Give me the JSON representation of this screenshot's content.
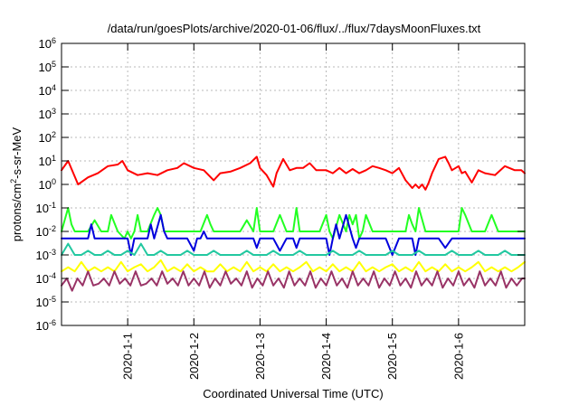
{
  "chart_data": {
    "type": "line",
    "title": "/data/run/goesPlots/archive/2020-01-06/flux/../flux/7daysMoonFluxes.txt",
    "xlabel": "Coordinated Universal Time (UTC)",
    "ylabel_parts": {
      "before": "protons/cm",
      "sup": "2",
      "after": "-s-sr-MeV"
    },
    "x_range": [
      0,
      7
    ],
    "x_ticks": [
      {
        "x": 1,
        "label": "2020-1-1"
      },
      {
        "x": 2,
        "label": "2020-1-2"
      },
      {
        "x": 3,
        "label": "2020-1-3"
      },
      {
        "x": 4,
        "label": "2020-1-4"
      },
      {
        "x": 5,
        "label": "2020-1-5"
      },
      {
        "x": 6,
        "label": "2020-1-6"
      }
    ],
    "y_scale": "log",
    "y_range": [
      1e-06,
      1000000.0
    ],
    "y_ticks": [
      {
        "exp": -6,
        "base": "10",
        "sup": "-6"
      },
      {
        "exp": -5,
        "base": "10",
        "sup": "-5"
      },
      {
        "exp": -4,
        "base": "10",
        "sup": "-4"
      },
      {
        "exp": -3,
        "base": "10",
        "sup": "-3"
      },
      {
        "exp": -2,
        "base": "10",
        "sup": "-2"
      },
      {
        "exp": -1,
        "base": "10",
        "sup": "-1"
      },
      {
        "exp": 0,
        "base": "10",
        "sup": "0"
      },
      {
        "exp": 1,
        "base": "10",
        "sup": "1"
      },
      {
        "exp": 2,
        "base": "10",
        "sup": "2"
      },
      {
        "exp": 3,
        "base": "10",
        "sup": "3"
      },
      {
        "exp": 4,
        "base": "10",
        "sup": "4"
      },
      {
        "exp": 5,
        "base": "10",
        "sup": "5"
      },
      {
        "exp": 6,
        "base": "10",
        "sup": "6"
      }
    ],
    "grid": true,
    "series": [
      {
        "color": "#ff0000",
        "x": [
          0,
          0.1,
          0.25,
          0.4,
          0.55,
          0.7,
          0.85,
          0.92,
          1.0,
          1.15,
          1.3,
          1.45,
          1.6,
          1.75,
          1.85,
          2.0,
          2.15,
          2.3,
          2.4,
          2.55,
          2.7,
          2.85,
          2.95,
          3.0,
          3.1,
          3.2,
          3.25,
          3.35,
          3.45,
          3.55,
          3.65,
          3.75,
          3.85,
          4.0,
          4.1,
          4.2,
          4.3,
          4.4,
          4.5,
          4.6,
          4.7,
          4.8,
          4.9,
          5.0,
          5.1,
          5.2,
          5.3,
          5.35,
          5.4,
          5.45,
          5.5,
          5.55,
          5.6,
          5.7,
          5.8,
          5.85,
          5.9,
          6.0,
          6.05,
          6.1,
          6.2,
          6.3,
          6.4,
          6.55,
          6.7,
          6.85,
          6.95,
          7.0
        ],
        "values": [
          4,
          10,
          1.0,
          2,
          3,
          6,
          7,
          10,
          4,
          2.5,
          3,
          2.5,
          4,
          5,
          8,
          5,
          4,
          1.5,
          3,
          3.5,
          5,
          8,
          15,
          5,
          2.5,
          0.8,
          3,
          12,
          4,
          5,
          5,
          8,
          4,
          4,
          3,
          5,
          3,
          4.5,
          3,
          4,
          6,
          5,
          4,
          3,
          5,
          1.5,
          0.7,
          1.0,
          0.7,
          1.0,
          0.6,
          1.2,
          3,
          12,
          15,
          8,
          4,
          6,
          3,
          3.5,
          1.2,
          4,
          3,
          2.5,
          6,
          4,
          4,
          3
        ]
      },
      {
        "color": "#22ff22",
        "x": [
          0,
          0.1,
          0.15,
          0.2,
          0.3,
          0.4,
          0.5,
          0.6,
          0.7,
          0.75,
          0.85,
          0.95,
          1.0,
          1.05,
          1.1,
          1.15,
          1.2,
          1.3,
          1.4,
          1.45,
          1.5,
          1.55,
          1.6,
          1.7,
          1.8,
          1.9,
          2.0,
          2.1,
          2.2,
          2.25,
          2.3,
          2.4,
          2.5,
          2.6,
          2.7,
          2.8,
          2.9,
          2.95,
          3.0,
          3.05,
          3.1,
          3.2,
          3.3,
          3.4,
          3.5,
          3.55,
          3.6,
          3.7,
          3.8,
          3.9,
          4.0,
          4.05,
          4.1,
          4.2,
          4.3,
          4.35,
          4.4,
          4.45,
          4.5,
          4.55,
          4.6,
          4.7,
          4.8,
          4.9,
          5.0,
          5.1,
          5.2,
          5.25,
          5.3,
          5.35,
          5.4,
          5.5,
          5.6,
          5.7,
          5.8,
          5.9,
          6.0,
          6.05,
          6.1,
          6.2,
          6.3,
          6.4,
          6.5,
          6.6,
          6.7,
          6.8,
          6.9,
          7.0
        ],
        "values": [
          0.01,
          0.1,
          0.02,
          0.01,
          0.01,
          0.01,
          0.03,
          0.01,
          0.01,
          0.05,
          0.01,
          0.005,
          0.01,
          0.005,
          0.01,
          0.05,
          0.01,
          0.01,
          0.05,
          0.1,
          0.05,
          0.01,
          0.01,
          0.01,
          0.01,
          0.01,
          0.01,
          0.01,
          0.05,
          0.02,
          0.01,
          0.01,
          0.01,
          0.01,
          0.01,
          0.03,
          0.01,
          0.1,
          0.01,
          0.01,
          0.01,
          0.01,
          0.05,
          0.01,
          0.01,
          0.1,
          0.01,
          0.01,
          0.01,
          0.01,
          0.05,
          0.01,
          0.005,
          0.05,
          0.01,
          0.05,
          0.02,
          0.05,
          0.005,
          0.01,
          0.05,
          0.01,
          0.01,
          0.01,
          0.01,
          0.01,
          0.01,
          0.05,
          0.02,
          0.01,
          0.1,
          0.01,
          0.01,
          0.01,
          0.01,
          0.01,
          0.01,
          0.1,
          0.05,
          0.01,
          0.01,
          0.01,
          0.05,
          0.01,
          0.01,
          0.01,
          0.01,
          0.01
        ]
      },
      {
        "color": "#0000dd",
        "x": [
          0,
          0.1,
          0.2,
          0.3,
          0.4,
          0.45,
          0.5,
          0.6,
          0.7,
          0.8,
          0.9,
          1.0,
          1.05,
          1.1,
          1.15,
          1.2,
          1.3,
          1.35,
          1.4,
          1.5,
          1.55,
          1.6,
          1.7,
          1.8,
          1.9,
          2.0,
          2.05,
          2.1,
          2.15,
          2.2,
          2.3,
          2.4,
          2.5,
          2.6,
          2.7,
          2.8,
          2.9,
          2.95,
          3.0,
          3.05,
          3.1,
          3.2,
          3.3,
          3.4,
          3.5,
          3.55,
          3.6,
          3.7,
          3.8,
          3.9,
          4.0,
          4.05,
          4.1,
          4.15,
          4.2,
          4.3,
          4.4,
          4.45,
          4.5,
          4.6,
          4.7,
          4.8,
          4.9,
          5.0,
          5.1,
          5.2,
          5.3,
          5.35,
          5.4,
          5.5,
          5.6,
          5.7,
          5.8,
          5.9,
          6.0,
          6.1,
          6.2,
          6.3,
          6.4,
          6.5,
          6.6,
          6.7,
          6.8,
          6.9,
          7.0
        ],
        "values": [
          0.005,
          0.005,
          0.005,
          0.005,
          0.005,
          0.02,
          0.005,
          0.005,
          0.005,
          0.005,
          0.005,
          0.005,
          0.001,
          0.005,
          0.005,
          0.005,
          0.005,
          0.02,
          0.005,
          0.05,
          0.01,
          0.005,
          0.005,
          0.005,
          0.005,
          0.0015,
          0.005,
          0.005,
          0.01,
          0.005,
          0.005,
          0.005,
          0.005,
          0.005,
          0.005,
          0.005,
          0.005,
          0.002,
          0.005,
          0.005,
          0.005,
          0.005,
          0.0015,
          0.005,
          0.005,
          0.002,
          0.005,
          0.005,
          0.005,
          0.005,
          0.005,
          0.001,
          0.005,
          0.02,
          0.005,
          0.05,
          0.005,
          0.002,
          0.005,
          0.005,
          0.005,
          0.005,
          0.005,
          0.001,
          0.005,
          0.005,
          0.005,
          0.001,
          0.005,
          0.005,
          0.005,
          0.005,
          0.002,
          0.005,
          0.005,
          0.005,
          0.005,
          0.005,
          0.005,
          0.005,
          0.005,
          0.005,
          0.005,
          0.005,
          0.005
        ]
      },
      {
        "color": "#22c8a0",
        "x": [
          0,
          0.1,
          0.2,
          0.3,
          0.4,
          0.5,
          0.6,
          0.7,
          0.8,
          0.9,
          1.0,
          1.1,
          1.2,
          1.3,
          1.4,
          1.5,
          1.6,
          1.7,
          1.8,
          1.9,
          2.0,
          2.1,
          2.2,
          2.3,
          2.4,
          2.5,
          2.6,
          2.7,
          2.8,
          2.9,
          3.0,
          3.1,
          3.2,
          3.3,
          3.4,
          3.5,
          3.6,
          3.7,
          3.8,
          3.9,
          4.0,
          4.1,
          4.2,
          4.3,
          4.4,
          4.5,
          4.6,
          4.7,
          4.8,
          4.9,
          5.0,
          5.1,
          5.2,
          5.3,
          5.4,
          5.5,
          5.6,
          5.7,
          5.8,
          5.9,
          6.0,
          6.1,
          6.2,
          6.3,
          6.4,
          6.5,
          6.6,
          6.7,
          6.8,
          6.9,
          7.0
        ],
        "values": [
          0.001,
          0.003,
          0.001,
          0.001,
          0.0015,
          0.001,
          0.001,
          0.0015,
          0.001,
          0.001,
          0.0015,
          0.001,
          0.003,
          0.001,
          0.001,
          0.0015,
          0.001,
          0.001,
          0.001,
          0.0015,
          0.001,
          0.001,
          0.001,
          0.0015,
          0.001,
          0.001,
          0.001,
          0.001,
          0.0015,
          0.001,
          0.001,
          0.001,
          0.0015,
          0.001,
          0.001,
          0.001,
          0.0015,
          0.001,
          0.001,
          0.001,
          0.001,
          0.0015,
          0.001,
          0.001,
          0.001,
          0.0015,
          0.001,
          0.001,
          0.001,
          0.001,
          0.0015,
          0.001,
          0.001,
          0.001,
          0.0015,
          0.001,
          0.001,
          0.001,
          0.001,
          0.0015,
          0.001,
          0.001,
          0.001,
          0.0015,
          0.001,
          0.001,
          0.001,
          0.0015,
          0.001,
          0.001,
          0.001
        ]
      },
      {
        "color": "#ffff00",
        "x": [
          0,
          0.1,
          0.2,
          0.3,
          0.4,
          0.5,
          0.6,
          0.7,
          0.8,
          0.9,
          1.0,
          1.1,
          1.2,
          1.3,
          1.4,
          1.5,
          1.6,
          1.7,
          1.8,
          1.9,
          2.0,
          2.1,
          2.2,
          2.3,
          2.4,
          2.5,
          2.6,
          2.7,
          2.8,
          2.9,
          3.0,
          3.1,
          3.2,
          3.3,
          3.4,
          3.5,
          3.6,
          3.7,
          3.8,
          3.9,
          4.0,
          4.1,
          4.2,
          4.3,
          4.4,
          4.5,
          4.6,
          4.7,
          4.8,
          4.9,
          5.0,
          5.1,
          5.2,
          5.3,
          5.4,
          5.5,
          5.6,
          5.7,
          5.8,
          5.9,
          6.0,
          6.1,
          6.2,
          6.3,
          6.4,
          6.5,
          6.6,
          6.7,
          6.8,
          6.9,
          7.0
        ],
        "values": [
          0.0002,
          0.0003,
          0.0002,
          0.0005,
          0.0002,
          0.0003,
          0.0002,
          0.0003,
          0.0002,
          0.0005,
          0.0002,
          0.0003,
          0.0004,
          0.0002,
          0.0003,
          0.0006,
          0.0002,
          0.0003,
          0.0002,
          0.0004,
          0.0002,
          0.0003,
          0.0002,
          0.0002,
          0.0004,
          0.0002,
          0.0003,
          0.0002,
          0.0005,
          0.0002,
          0.0003,
          0.0002,
          0.0004,
          0.0002,
          0.0003,
          0.0002,
          0.0003,
          0.0005,
          0.0002,
          0.0003,
          0.0002,
          0.0004,
          0.0002,
          0.0003,
          0.0002,
          0.0005,
          0.0002,
          0.0003,
          0.0002,
          0.0003,
          0.0004,
          0.0002,
          0.0003,
          0.0002,
          0.0005,
          0.0002,
          0.0003,
          0.0002,
          0.0004,
          0.0002,
          0.0003,
          0.0002,
          0.0003,
          0.0005,
          0.0002,
          0.0003,
          0.0002,
          0.0003,
          0.0002,
          0.0003,
          0.0005
        ]
      },
      {
        "color": "#993366",
        "x": [
          0,
          0.08,
          0.16,
          0.24,
          0.32,
          0.4,
          0.48,
          0.56,
          0.64,
          0.72,
          0.8,
          0.88,
          0.96,
          1.04,
          1.12,
          1.2,
          1.28,
          1.36,
          1.44,
          1.52,
          1.6,
          1.68,
          1.76,
          1.84,
          1.92,
          2.0,
          2.08,
          2.16,
          2.24,
          2.32,
          2.4,
          2.48,
          2.56,
          2.64,
          2.72,
          2.8,
          2.88,
          2.96,
          3.04,
          3.12,
          3.2,
          3.28,
          3.36,
          3.44,
          3.52,
          3.6,
          3.68,
          3.76,
          3.84,
          3.92,
          4.0,
          4.08,
          4.16,
          4.24,
          4.32,
          4.4,
          4.48,
          4.56,
          4.64,
          4.72,
          4.8,
          4.88,
          4.96,
          5.04,
          5.12,
          5.2,
          5.28,
          5.36,
          5.44,
          5.52,
          5.6,
          5.68,
          5.76,
          5.84,
          5.92,
          6.0,
          6.08,
          6.16,
          6.24,
          6.32,
          6.4,
          6.48,
          6.56,
          6.64,
          6.72,
          6.8,
          6.88,
          6.96,
          7.0
        ],
        "values": [
          5e-05,
          0.0001,
          3e-05,
          0.0001,
          5e-05,
          0.0002,
          5e-05,
          6e-05,
          0.0001,
          5e-05,
          0.0002,
          6e-05,
          0.0001,
          5e-05,
          0.0002,
          5e-05,
          6e-05,
          0.0001,
          5e-05,
          0.0002,
          6e-05,
          0.0001,
          5e-05,
          0.0002,
          5e-05,
          0.0001,
          5e-05,
          0.0002,
          4e-05,
          0.0001,
          5e-05,
          0.0002,
          6e-05,
          0.0001,
          5e-05,
          0.0002,
          4e-05,
          0.0001,
          5e-05,
          0.0002,
          5e-05,
          0.0001,
          4e-05,
          0.0002,
          5e-05,
          0.0001,
          5e-05,
          0.0002,
          4e-05,
          0.0001,
          5e-05,
          0.0002,
          5e-05,
          0.0001,
          4e-05,
          0.0002,
          5e-05,
          0.0001,
          5e-05,
          0.0002,
          4e-05,
          0.0001,
          5e-05,
          0.0002,
          5e-05,
          0.0001,
          4e-05,
          0.0002,
          5e-05,
          0.0001,
          5e-05,
          0.0002,
          4e-05,
          0.0001,
          5e-05,
          0.0002,
          5e-05,
          0.0001,
          4e-05,
          0.0002,
          5e-05,
          0.0001,
          5e-05,
          0.0002,
          4e-05,
          0.0001,
          5e-05,
          0.0001,
          0.0001
        ]
      }
    ]
  }
}
